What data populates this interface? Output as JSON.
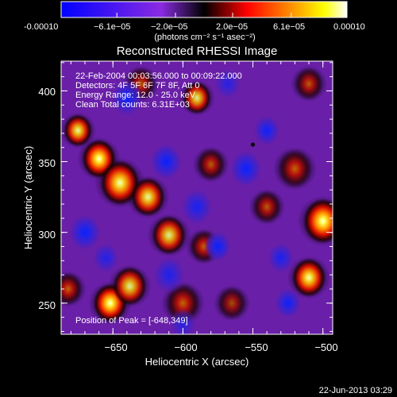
{
  "colorbar": {
    "tick_labels": [
      "-0.00010",
      "−6.1e−05",
      "−2.0e−05",
      "2.0e−05",
      "6.1e−05",
      "0.00010"
    ],
    "unit_label": "(photons cm⁻² s⁻¹ asec⁻²)"
  },
  "chart_data": {
    "type": "heatmap",
    "title": "Reconstructed RHESSI Image",
    "xlabel": "Heliocentric X (arcsec)",
    "ylabel": "Heliocentric Y (arcsec)",
    "xlim": [
      -687,
      -493
    ],
    "ylim": [
      228,
      421
    ],
    "xticks": [
      -650,
      -600,
      -550,
      -500
    ],
    "yticks": [
      250,
      300,
      350,
      400
    ],
    "x_tick_labels": [
      "−650",
      "−600",
      "−550",
      "−500"
    ],
    "y_tick_labels": [
      "250",
      "300",
      "350",
      "400"
    ],
    "value_range": [
      -0.0001,
      0.0001
    ],
    "colormap": "blue-purple-black-red-orange-yellow-white",
    "annotations": [
      "22-Feb-2004 00:03:56.000 to 00:09:22.000",
      "Detectors: 4F 5F 6F 7F 8F, Att 0",
      "Energy Range: 12.0 - 25.0 keV",
      "Clean     Total counts: 6.31E+03"
    ],
    "peak_label": "Position of Peak = [-648,349]",
    "peak": [
      -648,
      349
    ],
    "marker": [
      -550,
      362
    ],
    "blobs": [
      {
        "x": -660,
        "y": 352,
        "s": 6,
        "a": 1.0
      },
      {
        "x": -645,
        "y": 335,
        "s": 7,
        "a": 0.8
      },
      {
        "x": -652,
        "y": 250,
        "s": 6,
        "a": 1.0
      },
      {
        "x": -638,
        "y": 262,
        "s": 6,
        "a": 0.7
      },
      {
        "x": -625,
        "y": 325,
        "s": 6,
        "a": 0.75
      },
      {
        "x": -610,
        "y": 298,
        "s": 6,
        "a": 0.7
      },
      {
        "x": -600,
        "y": 250,
        "s": 6,
        "a": 0.6
      },
      {
        "x": -580,
        "y": 348,
        "s": 5,
        "a": 0.55
      },
      {
        "x": -585,
        "y": 290,
        "s": 5,
        "a": 0.6
      },
      {
        "x": -540,
        "y": 318,
        "s": 5,
        "a": 0.55
      },
      {
        "x": -520,
        "y": 345,
        "s": 6,
        "a": 0.6
      },
      {
        "x": -500,
        "y": 308,
        "s": 7,
        "a": 0.95
      },
      {
        "x": -510,
        "y": 268,
        "s": 6,
        "a": 0.8
      },
      {
        "x": -675,
        "y": 372,
        "s": 5,
        "a": 0.75
      },
      {
        "x": -682,
        "y": 260,
        "s": 5,
        "a": 0.6
      },
      {
        "x": -630,
        "y": 405,
        "s": 5,
        "a": 0.55
      },
      {
        "x": -590,
        "y": 395,
        "s": 5,
        "a": 0.7
      },
      {
        "x": -510,
        "y": 405,
        "s": 5,
        "a": 0.55
      },
      {
        "x": -565,
        "y": 250,
        "s": 5,
        "a": 0.45
      },
      {
        "x": -670,
        "y": 300,
        "s": 6,
        "a": -0.9
      },
      {
        "x": -640,
        "y": 395,
        "s": 6,
        "a": -0.8
      },
      {
        "x": -612,
        "y": 350,
        "s": 6,
        "a": -0.9
      },
      {
        "x": -590,
        "y": 318,
        "s": 6,
        "a": -0.7
      },
      {
        "x": -575,
        "y": 290,
        "s": 5,
        "a": -0.9
      },
      {
        "x": -555,
        "y": 345,
        "s": 6,
        "a": -1.0
      },
      {
        "x": -540,
        "y": 372,
        "s": 5,
        "a": -0.8
      },
      {
        "x": -530,
        "y": 282,
        "s": 5,
        "a": -0.7
      },
      {
        "x": -525,
        "y": 250,
        "s": 5,
        "a": -0.8
      },
      {
        "x": -610,
        "y": 270,
        "s": 6,
        "a": -0.65
      },
      {
        "x": -655,
        "y": 282,
        "s": 5,
        "a": -0.6
      },
      {
        "x": -568,
        "y": 405,
        "s": 5,
        "a": -0.55
      },
      {
        "x": -600,
        "y": 235,
        "s": 5,
        "a": -0.5
      }
    ]
  },
  "footer": {
    "date": "22-Jun-2013 03:29"
  }
}
